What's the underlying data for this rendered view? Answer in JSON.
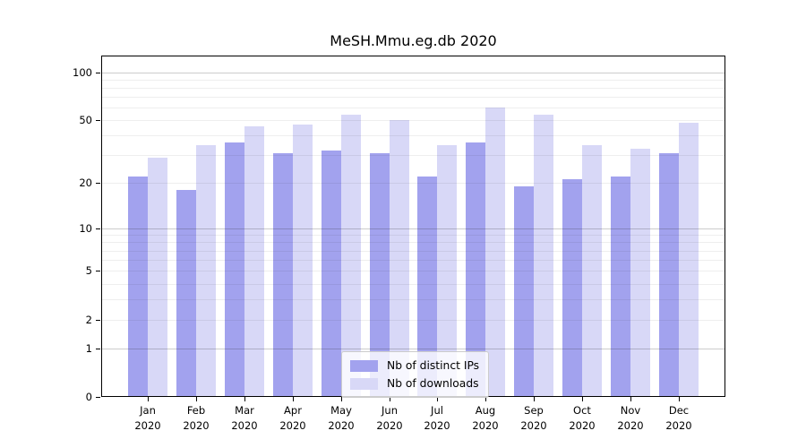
{
  "chart_data": {
    "type": "bar",
    "title": "MeSH.Mmu.eg.db 2020",
    "year": "2020",
    "months": [
      "Jan",
      "Feb",
      "Mar",
      "Apr",
      "May",
      "Jun",
      "Jul",
      "Aug",
      "Sep",
      "Oct",
      "Nov",
      "Dec"
    ],
    "categories": [
      "Jan 2020",
      "Feb 2020",
      "Mar 2020",
      "Apr 2020",
      "May 2020",
      "Jun 2020",
      "Jul 2020",
      "Aug 2020",
      "Sep 2020",
      "Oct 2020",
      "Nov 2020",
      "Dec 2020"
    ],
    "series": [
      {
        "name": "Nb of distinct IPs",
        "color": "#a2a2ee",
        "values": [
          22,
          18,
          36,
          31,
          32,
          31,
          22,
          36,
          19,
          21,
          22,
          31
        ]
      },
      {
        "name": "Nb of downloads",
        "color": "#d8d8f7",
        "values": [
          29,
          35,
          46,
          47,
          54,
          50,
          35,
          60,
          54,
          35,
          33,
          48
        ]
      }
    ],
    "yscale": "log1p",
    "ylim": [
      0,
      127
    ],
    "yticks": [
      0,
      1,
      2,
      5,
      10,
      20,
      50,
      100
    ],
    "gridline_values": [
      1,
      2,
      3,
      4,
      5,
      6,
      7,
      8,
      9,
      10,
      20,
      30,
      40,
      50,
      60,
      70,
      80,
      90,
      100
    ],
    "decade_gridlines": [
      1,
      10,
      100
    ],
    "grid": true,
    "legend_position": "lower center",
    "colors": {
      "background": "#ffffff",
      "axis": "#000000",
      "gridline_minor": "#ececec",
      "gridline_decade": "#c7c7c7",
      "legend_border": "#cccccc"
    }
  }
}
